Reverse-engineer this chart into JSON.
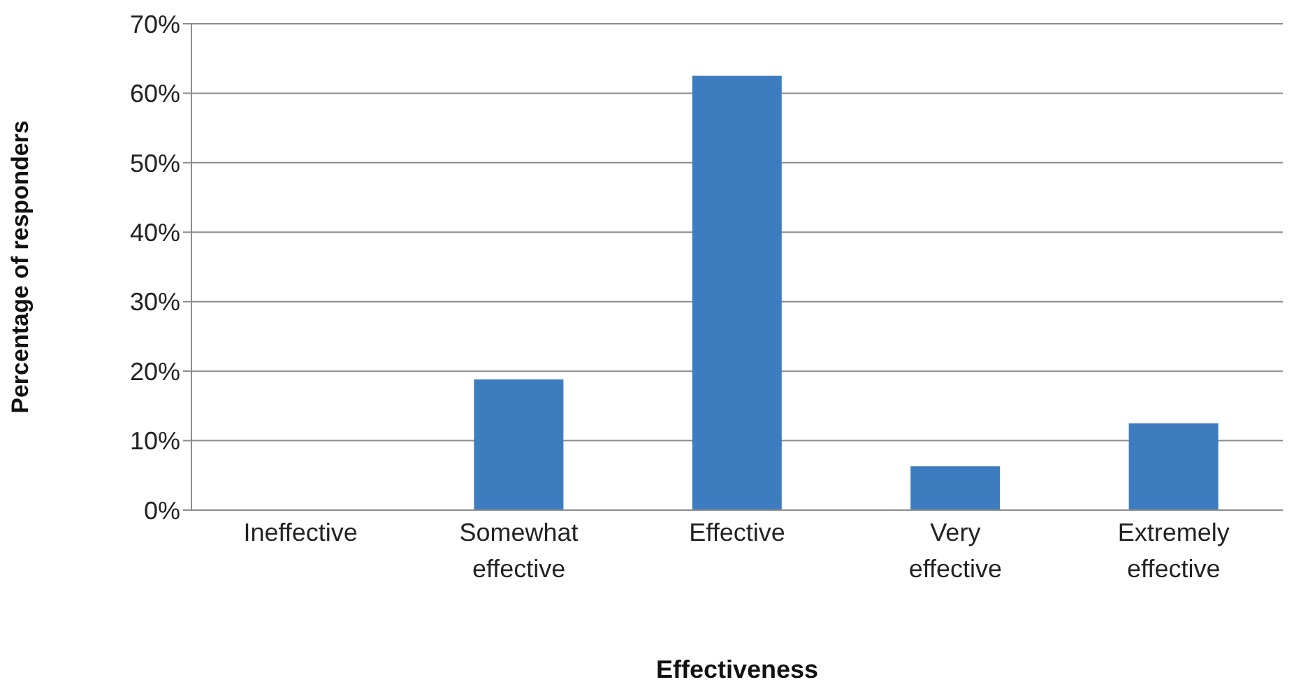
{
  "chart_data": {
    "type": "bar",
    "xlabel": "Effectiveness",
    "ylabel": "Percentage of responders",
    "categories": [
      "Ineffective",
      "Somewhat effective",
      "Effective",
      "Very effective",
      "Extremely effective"
    ],
    "values": [
      0,
      18.8,
      62.5,
      6.3,
      12.5
    ],
    "color": "#3d7dbf",
    "ylim": [
      0,
      70
    ],
    "yticks": [
      {
        "value": 0,
        "label": "0%"
      },
      {
        "value": 10,
        "label": "10%"
      },
      {
        "value": 20,
        "label": "20%"
      },
      {
        "value": 30,
        "label": "30%"
      },
      {
        "value": 40,
        "label": "40%"
      },
      {
        "value": 50,
        "label": "50%"
      },
      {
        "value": 60,
        "label": "60%"
      },
      {
        "value": 70,
        "label": "70%"
      }
    ],
    "grid": "y",
    "legend": false
  }
}
